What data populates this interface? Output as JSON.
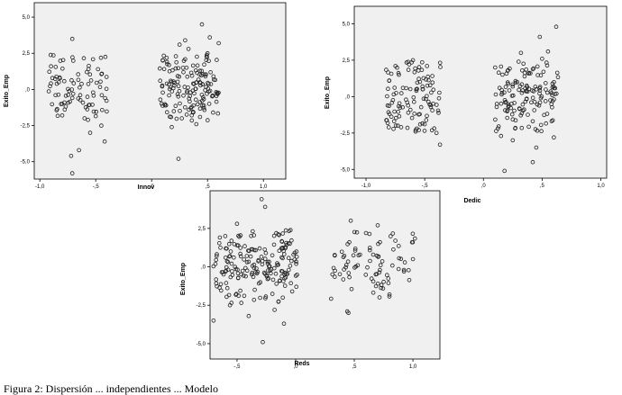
{
  "caption": "Figura 2: Dispersión ... independientes ... Modelo",
  "chart_data": [
    {
      "type": "scatter",
      "xlabel": "Innov",
      "ylabel": "Exito_Emp",
      "xlim": [
        -1.05,
        1.2
      ],
      "ylim": [
        -6.2,
        6.0
      ],
      "xticks": [
        "-1,0",
        "-,5",
        ",0",
        ",5",
        "1,0"
      ],
      "yticks": [
        "5,0",
        "2,5",
        ",0",
        "-2,5",
        "-5,0"
      ],
      "grid": false,
      "clusters": [
        {
          "x_range": [
            -0.92,
            -0.4
          ],
          "n": 80
        },
        {
          "x_range": [
            0.07,
            0.6
          ],
          "n": 150
        }
      ],
      "points": [
        [
          -0.71,
          3.5
        ],
        [
          -0.9,
          1.6
        ],
        [
          -0.83,
          0.5
        ],
        [
          -0.86,
          -0.4
        ],
        [
          -0.78,
          -0.9
        ],
        [
          -0.72,
          -4.6
        ],
        [
          -0.71,
          -5.8
        ],
        [
          -0.65,
          -4.2
        ],
        [
          -0.58,
          1.2
        ],
        [
          -0.48,
          1.4
        ],
        [
          -0.55,
          -3.0
        ],
        [
          -0.42,
          -3.6
        ],
        [
          -0.8,
          -1.8
        ],
        [
          -0.6,
          -2.0
        ],
        [
          -0.45,
          -2.5
        ],
        [
          0.45,
          4.5
        ],
        [
          0.52,
          3.6
        ],
        [
          0.3,
          3.4
        ],
        [
          0.25,
          3.1
        ],
        [
          0.18,
          -2.6
        ],
        [
          0.24,
          -4.8
        ],
        [
          0.27,
          -2.0
        ],
        [
          0.4,
          -2.4
        ],
        [
          0.55,
          -1.6
        ],
        [
          0.1,
          2.0
        ],
        [
          0.12,
          -1.1
        ],
        [
          0.6,
          3.2
        ],
        [
          0.35,
          -1.3
        ],
        [
          0.5,
          2.5
        ],
        [
          0.33,
          2.8
        ]
      ]
    },
    {
      "type": "scatter",
      "xlabel": "Dedic",
      "ylabel": "Exito_Emp",
      "xlim": [
        -1.1,
        1.05
      ],
      "ylim": [
        -5.6,
        6.2
      ],
      "xticks": [
        "-1,0",
        "-,5",
        ",0",
        ",5",
        "1,0"
      ],
      "yticks": [
        "5,0",
        "2,5",
        ",0",
        "-2,5",
        "-5,0"
      ],
      "grid": false,
      "clusters": [
        {
          "x_range": [
            -0.83,
            -0.36
          ],
          "n": 110
        },
        {
          "x_range": [
            0.1,
            0.64
          ],
          "n": 140
        }
      ],
      "points": [
        [
          0.62,
          4.8
        ],
        [
          0.48,
          4.1
        ],
        [
          0.55,
          3.1
        ],
        [
          0.32,
          3.0
        ],
        [
          0.42,
          -4.5
        ],
        [
          0.18,
          -5.1
        ],
        [
          0.25,
          -3.0
        ],
        [
          0.45,
          -3.5
        ],
        [
          0.1,
          2.0
        ],
        [
          -0.6,
          2.5
        ],
        [
          -0.37,
          -3.3
        ],
        [
          -0.55,
          -2.3
        ],
        [
          -0.8,
          -1.2
        ],
        [
          -0.72,
          1.5
        ],
        [
          -0.48,
          2.1
        ],
        [
          -0.4,
          -2.5
        ],
        [
          0.6,
          -2.8
        ],
        [
          0.3,
          2.4
        ],
        [
          0.15,
          -2.7
        ],
        [
          0.5,
          2.6
        ]
      ]
    },
    {
      "type": "scatter",
      "xlabel": "Reds",
      "ylabel": "Exito_Emp",
      "xlim": [
        -0.73,
        1.23
      ],
      "ylim": [
        -6.0,
        4.95
      ],
      "xticks": [
        "-,5",
        ",0",
        ",5",
        "1,0"
      ],
      "yticks": [
        "2,5",
        ",0",
        "-2,5",
        "-5,0"
      ],
      "grid": false,
      "clusters": [
        {
          "x_range": [
            -0.7,
            0.02
          ],
          "n": 190
        },
        {
          "x_range": [
            0.3,
            1.02
          ],
          "n": 80
        }
      ],
      "points": [
        [
          -0.29,
          4.4
        ],
        [
          -0.26,
          3.9
        ],
        [
          -0.73,
          -5.4
        ],
        [
          -0.28,
          -4.9
        ],
        [
          -0.56,
          -2.5
        ],
        [
          -0.7,
          -3.5
        ],
        [
          0.47,
          3.0
        ],
        [
          0.45,
          -3.0
        ],
        [
          0.7,
          2.7
        ],
        [
          0.44,
          -2.9
        ],
        [
          -0.5,
          2.8
        ],
        [
          -0.05,
          1.5
        ],
        [
          -0.1,
          -3.7
        ],
        [
          0.85,
          1.7
        ],
        [
          1.0,
          0.5
        ],
        [
          -0.6,
          2.0
        ],
        [
          -0.4,
          -3.2
        ],
        [
          0.8,
          -1.8
        ],
        [
          0.6,
          2.2
        ],
        [
          -0.18,
          -2.8
        ]
      ]
    }
  ]
}
